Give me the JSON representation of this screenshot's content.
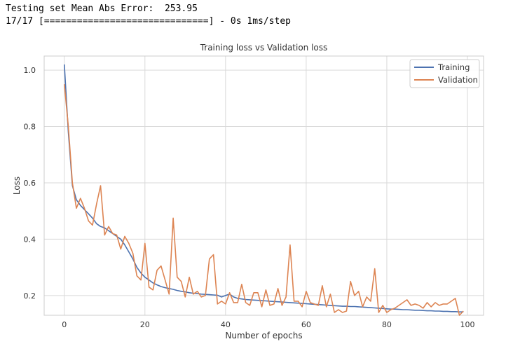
{
  "console": {
    "line1": "Testing set Mean Abs Error:  253.95",
    "line2": "17/17 [==============================] - 0s 1ms/step"
  },
  "colors": {
    "training": "#4c72b0",
    "validation": "#dd8452",
    "grid": "#d9d9d9",
    "frame": "#cccccc"
  },
  "chart_data": {
    "type": "line",
    "title": "Training loss vs Validation loss",
    "xlabel": "Number of epochs",
    "ylabel": "Loss",
    "xlim": [
      -5,
      104
    ],
    "ylim": [
      0.13,
      1.05
    ],
    "xticks": [
      0,
      20,
      40,
      60,
      80,
      100
    ],
    "yticks": [
      0.2,
      0.4,
      0.6,
      0.8,
      1.0
    ],
    "xtick_labels": [
      "0",
      "20",
      "40",
      "60",
      "80",
      "100"
    ],
    "ytick_labels": [
      "0.2",
      "0.4",
      "0.6",
      "0.8",
      "1.0"
    ],
    "grid": true,
    "legend": "top-right",
    "series": [
      {
        "name": "Training",
        "color_key": "training",
        "x": [
          0,
          1,
          2,
          3,
          4,
          5,
          6,
          7,
          8,
          9,
          10,
          11,
          12,
          13,
          14,
          15,
          16,
          17,
          18,
          19,
          20,
          21,
          22,
          23,
          24,
          25,
          26,
          27,
          28,
          29,
          30,
          31,
          32,
          33,
          34,
          35,
          36,
          37,
          38,
          39,
          40,
          41,
          42,
          43,
          44,
          45,
          46,
          47,
          48,
          49,
          50,
          51,
          52,
          53,
          54,
          55,
          56,
          57,
          58,
          59,
          60,
          61,
          62,
          63,
          64,
          65,
          66,
          67,
          68,
          69,
          70,
          71,
          72,
          73,
          74,
          75,
          76,
          77,
          78,
          79,
          80,
          81,
          82,
          83,
          84,
          85,
          86,
          87,
          88,
          89,
          90,
          91,
          92,
          93,
          94,
          95,
          96,
          97,
          98,
          99
        ],
        "y": [
          1.02,
          0.78,
          0.59,
          0.54,
          0.52,
          0.505,
          0.49,
          0.475,
          0.455,
          0.445,
          0.44,
          0.43,
          0.42,
          0.41,
          0.4,
          0.38,
          0.355,
          0.33,
          0.3,
          0.28,
          0.265,
          0.255,
          0.245,
          0.238,
          0.232,
          0.228,
          0.225,
          0.222,
          0.218,
          0.215,
          0.213,
          0.21,
          0.208,
          0.207,
          0.205,
          0.204,
          0.203,
          0.202,
          0.201,
          0.195,
          0.2,
          0.205,
          0.195,
          0.19,
          0.188,
          0.186,
          0.185,
          0.184,
          0.183,
          0.182,
          0.181,
          0.18,
          0.179,
          0.178,
          0.177,
          0.176,
          0.175,
          0.174,
          0.173,
          0.172,
          0.171,
          0.17,
          0.169,
          0.168,
          0.167,
          0.166,
          0.165,
          0.164,
          0.163,
          0.162,
          0.162,
          0.161,
          0.161,
          0.16,
          0.159,
          0.158,
          0.157,
          0.156,
          0.155,
          0.154,
          0.153,
          0.152,
          0.152,
          0.151,
          0.15,
          0.15,
          0.149,
          0.148,
          0.148,
          0.147,
          0.146,
          0.146,
          0.145,
          0.145,
          0.144,
          0.144,
          0.143,
          0.143,
          0.142,
          0.142
        ]
      },
      {
        "name": "Validation",
        "color_key": "validation",
        "x": [
          0,
          1,
          2,
          3,
          4,
          5,
          6,
          7,
          8,
          9,
          10,
          11,
          12,
          13,
          14,
          15,
          16,
          17,
          18,
          19,
          20,
          21,
          22,
          23,
          24,
          25,
          26,
          27,
          28,
          29,
          30,
          31,
          32,
          33,
          34,
          35,
          36,
          37,
          38,
          39,
          40,
          41,
          42,
          43,
          44,
          45,
          46,
          47,
          48,
          49,
          50,
          51,
          52,
          53,
          54,
          55,
          56,
          57,
          58,
          59,
          60,
          61,
          62,
          63,
          64,
          65,
          66,
          67,
          68,
          69,
          70,
          71,
          72,
          73,
          74,
          75,
          76,
          77,
          78,
          79,
          80,
          81,
          82,
          83,
          84,
          85,
          86,
          87,
          88,
          89,
          90,
          91,
          92,
          93,
          94,
          95,
          96,
          97,
          98,
          99
        ],
        "y": [
          0.95,
          0.8,
          0.6,
          0.51,
          0.545,
          0.51,
          0.465,
          0.45,
          0.525,
          0.59,
          0.415,
          0.445,
          0.42,
          0.415,
          0.365,
          0.41,
          0.385,
          0.35,
          0.27,
          0.255,
          0.385,
          0.23,
          0.22,
          0.29,
          0.305,
          0.255,
          0.205,
          0.475,
          0.265,
          0.25,
          0.195,
          0.265,
          0.205,
          0.215,
          0.195,
          0.2,
          0.33,
          0.345,
          0.17,
          0.18,
          0.17,
          0.21,
          0.175,
          0.175,
          0.24,
          0.175,
          0.165,
          0.21,
          0.21,
          0.16,
          0.22,
          0.165,
          0.17,
          0.225,
          0.165,
          0.195,
          0.38,
          0.18,
          0.18,
          0.16,
          0.215,
          0.175,
          0.17,
          0.165,
          0.235,
          0.16,
          0.205,
          0.14,
          0.15,
          0.14,
          0.145,
          0.25,
          0.2,
          0.215,
          0.16,
          0.195,
          0.18,
          0.295,
          0.14,
          0.165,
          0.14,
          0.15,
          0.155,
          0.165,
          0.175,
          0.185,
          0.165,
          0.17,
          0.165,
          0.155,
          0.175,
          0.16,
          0.175,
          0.165,
          0.17,
          0.17,
          0.18,
          0.19,
          0.13,
          0.145
        ]
      }
    ]
  }
}
